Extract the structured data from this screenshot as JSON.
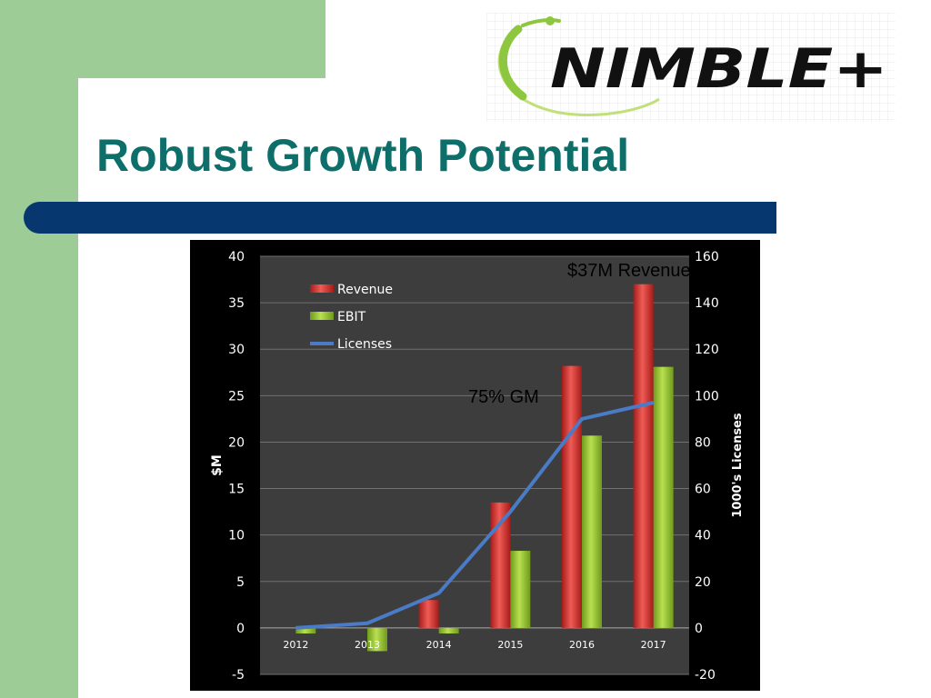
{
  "slide": {
    "title": "Robust Growth Potential",
    "logo_text": "NIMBLE+",
    "annotation_revenue": "$37M Revenue",
    "annotation_gm": "75% GM"
  },
  "colors": {
    "accent_green": "#9dcc96",
    "title_teal": "#0e6e6a",
    "band_navy": "#06376e",
    "revenue_red": "#d93a35",
    "ebit_green": "#9acd32",
    "licenses_blue": "#4a7bc6"
  },
  "chart_data": {
    "type": "bar",
    "categories": [
      "2012",
      "2013",
      "2014",
      "2015",
      "2016",
      "2017"
    ],
    "series": [
      {
        "name": "Revenue",
        "type": "bar",
        "axis": "left",
        "values": [
          0,
          0,
          3,
          13.5,
          28.2,
          37
        ]
      },
      {
        "name": "EBIT",
        "type": "bar",
        "axis": "left",
        "values": [
          -0.6,
          -2.5,
          -0.6,
          8.3,
          20.7,
          28.1
        ]
      },
      {
        "name": "Licenses",
        "type": "line",
        "axis": "right",
        "values": [
          0,
          2,
          15,
          50,
          90,
          97
        ]
      }
    ],
    "ylabel": "$M",
    "y2label": "1000's Licenses",
    "ylim": [
      -5,
      40
    ],
    "y2lim": [
      -20,
      160
    ],
    "yticks": [
      "40",
      "35",
      "30",
      "25",
      "20",
      "15",
      "10",
      "5",
      "0",
      "-5"
    ],
    "y2ticks": [
      "160",
      "140",
      "120",
      "100",
      "80",
      "60",
      "40",
      "20",
      "0",
      "-20"
    ],
    "legend": [
      "Revenue",
      "EBIT",
      "Licenses"
    ],
    "legend_position": "top-left",
    "grid": true
  }
}
